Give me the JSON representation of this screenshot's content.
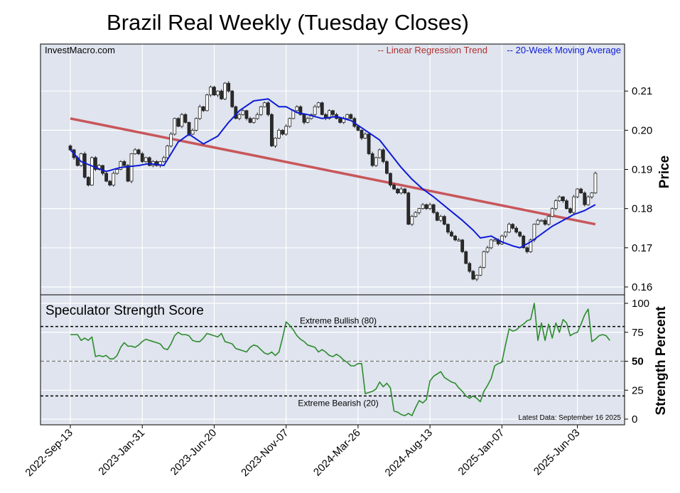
{
  "title": "Brazil Real Weekly (Tuesday Closes)",
  "source_label": "InvestMacro.com",
  "legend": {
    "trend_label": "-- Linear Regression Trend",
    "ma_label": "-- 20-Week Moving Average",
    "trend_color": "#c8565a",
    "ma_color": "#0d1bd6"
  },
  "colors": {
    "panel_bg": "#dfe4ee",
    "grid": "#ffffff",
    "candle_up": "#ffffff",
    "candle_down": "#2a2a2a",
    "strength_line": "#2e8b2e"
  },
  "chart_data": [
    {
      "type": "candlestick",
      "ylabel": "Price",
      "ylim": [
        0.158,
        0.222
      ],
      "yticks": [
        "0.16",
        "0.17",
        "0.18",
        "0.19",
        "0.20",
        "0.21"
      ],
      "grid": true,
      "x_ticks": [
        {
          "label": "2022-Sep-13",
          "week": 0
        },
        {
          "label": "2023-Jan-31",
          "week": 20
        },
        {
          "label": "2023-Jun-20",
          "week": 40
        },
        {
          "label": "2023-Nov-07",
          "week": 60
        },
        {
          "label": "2024-Mar-26",
          "week": 80
        },
        {
          "label": "2024-Aug-13",
          "week": 100
        },
        {
          "label": "2025-Jan-07",
          "week": 120
        },
        {
          "label": "2025-Jun-03",
          "week": 141
        }
      ],
      "closes": [
        0.195,
        0.193,
        0.191,
        0.194,
        0.188,
        0.186,
        0.193,
        0.19,
        0.191,
        0.189,
        0.187,
        0.186,
        0.189,
        0.19,
        0.192,
        0.191,
        0.187,
        0.194,
        0.195,
        0.194,
        0.192,
        0.193,
        0.191,
        0.192,
        0.191,
        0.192,
        0.193,
        0.196,
        0.199,
        0.203,
        0.201,
        0.204,
        0.202,
        0.199,
        0.2,
        0.203,
        0.206,
        0.205,
        0.209,
        0.211,
        0.209,
        0.21,
        0.208,
        0.212,
        0.21,
        0.206,
        0.203,
        0.204,
        0.205,
        0.203,
        0.202,
        0.203,
        0.204,
        0.206,
        0.207,
        0.204,
        0.196,
        0.198,
        0.2,
        0.199,
        0.201,
        0.203,
        0.205,
        0.206,
        0.204,
        0.202,
        0.203,
        0.204,
        0.206,
        0.207,
        0.204,
        0.203,
        0.205,
        0.204,
        0.203,
        0.202,
        0.203,
        0.204,
        0.203,
        0.201,
        0.2,
        0.198,
        0.199,
        0.194,
        0.191,
        0.193,
        0.195,
        0.192,
        0.189,
        0.186,
        0.185,
        0.184,
        0.185,
        0.184,
        0.176,
        0.178,
        0.179,
        0.18,
        0.181,
        0.18,
        0.181,
        0.179,
        0.177,
        0.178,
        0.176,
        0.174,
        0.173,
        0.172,
        0.172,
        0.169,
        0.166,
        0.164,
        0.162,
        0.163,
        0.165,
        0.169,
        0.17,
        0.172,
        0.172,
        0.171,
        0.173,
        0.174,
        0.176,
        0.175,
        0.174,
        0.173,
        0.17,
        0.169,
        0.172,
        0.176,
        0.177,
        0.177,
        0.176,
        0.178,
        0.18,
        0.182,
        0.183,
        0.182,
        0.18,
        0.179,
        0.183,
        0.185,
        0.184,
        0.181,
        0.183,
        0.184,
        0.189
      ],
      "series": [
        {
          "name": "Linear Regression Trend",
          "start": [
            0,
            0.203
          ],
          "end": [
            146,
            0.176
          ]
        },
        {
          "name": "20-Week Moving Average",
          "points": [
            [
              0,
              0.195
            ],
            [
              3,
              0.192
            ],
            [
              7,
              0.1905
            ],
            [
              10,
              0.1895
            ],
            [
              14,
              0.1905
            ],
            [
              19,
              0.191
            ],
            [
              22,
              0.1915
            ],
            [
              26,
              0.191
            ],
            [
              30,
              0.197
            ],
            [
              33,
              0.199
            ],
            [
              37,
              0.1965
            ],
            [
              41,
              0.1985
            ],
            [
              44,
              0.202
            ],
            [
              47,
              0.205
            ],
            [
              51,
              0.2075
            ],
            [
              55,
              0.208
            ],
            [
              58,
              0.206
            ],
            [
              60,
              0.206
            ],
            [
              63,
              0.2045
            ],
            [
              66,
              0.204
            ],
            [
              70,
              0.203
            ],
            [
              74,
              0.2035
            ],
            [
              78,
              0.2025
            ],
            [
              82,
              0.2
            ],
            [
              86,
              0.1975
            ],
            [
              89,
              0.194
            ],
            [
              92,
              0.1905
            ],
            [
              95,
              0.1875
            ],
            [
              98,
              0.185
            ],
            [
              101,
              0.183
            ],
            [
              105,
              0.18
            ],
            [
              109,
              0.177
            ],
            [
              112,
              0.1745
            ],
            [
              114,
              0.1725
            ],
            [
              117,
              0.173
            ],
            [
              120,
              0.1715
            ],
            [
              123,
              0.1705
            ],
            [
              125,
              0.17
            ],
            [
              128,
              0.1715
            ],
            [
              131,
              0.1735
            ],
            [
              134,
              0.1755
            ],
            [
              137,
              0.177
            ],
            [
              140,
              0.1785
            ],
            [
              143,
              0.1795
            ],
            [
              146,
              0.181
            ]
          ]
        }
      ]
    },
    {
      "type": "line",
      "title": "Speculator Strength Score",
      "ylabel": "Strength Percent",
      "ylim": [
        0,
        100
      ],
      "yticks": [
        "0",
        "25",
        "50",
        "75",
        "100"
      ],
      "reference_lines": [
        {
          "value": 80,
          "label": "Extreme Bullish (80)"
        },
        {
          "value": 50,
          "label": ""
        },
        {
          "value": 20,
          "label": "Extreme Bearish (20)"
        }
      ],
      "annotation": "Latest Data: September 16 2025",
      "values": [
        73,
        73,
        73,
        68,
        70,
        68,
        71,
        54,
        55,
        54,
        55,
        52,
        52,
        55,
        62,
        66,
        63,
        63,
        62,
        64,
        67,
        69,
        68,
        67,
        66,
        65,
        61,
        60,
        65,
        72,
        75,
        73,
        73,
        72,
        68,
        67,
        67,
        70,
        74,
        73,
        72,
        71,
        74,
        67,
        66,
        65,
        61,
        60,
        59,
        58,
        62,
        64,
        63,
        60,
        57,
        56,
        58,
        55,
        58,
        70,
        84,
        81,
        77,
        72,
        69,
        67,
        64,
        63,
        62,
        58,
        60,
        58,
        55,
        54,
        56,
        54,
        51,
        49,
        46,
        46,
        48,
        48,
        22,
        23,
        24,
        26,
        32,
        28,
        31,
        27,
        7,
        6,
        4,
        3,
        5,
        3,
        10,
        16,
        14,
        17,
        33,
        37,
        39,
        41,
        36,
        34,
        32,
        31,
        27,
        24,
        20,
        18,
        20,
        18,
        15,
        24,
        29,
        35,
        46,
        48,
        49,
        64,
        78,
        76,
        77,
        80,
        82,
        85,
        86,
        100,
        68,
        83,
        68,
        82,
        70,
        83,
        75,
        86,
        83,
        72,
        74,
        75,
        82,
        90,
        95,
        67,
        69,
        72,
        73,
        72,
        68
      ]
    }
  ]
}
